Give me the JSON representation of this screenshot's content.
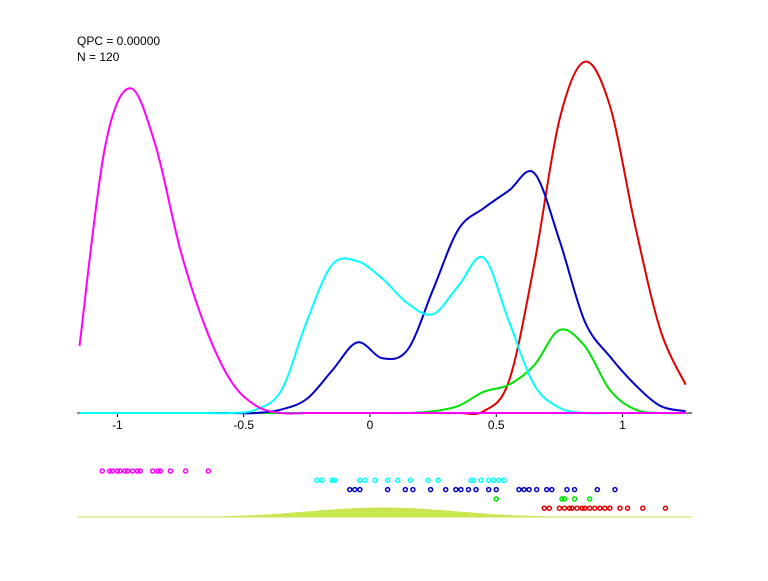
{
  "chart_data": {
    "type": "density",
    "annotations": [
      "QPC = 0.00000",
      "N = 120"
    ],
    "x": [
      -1.15,
      -1.05,
      -0.95,
      -0.85,
      -0.75,
      -0.65,
      -0.55,
      -0.45,
      -0.35,
      -0.25,
      -0.15,
      -0.05,
      0.05,
      0.15,
      0.25,
      0.35,
      0.45,
      0.55,
      0.65,
      0.75,
      0.85,
      0.95,
      1.05,
      1.15,
      1.25
    ],
    "xlim": [
      -1.16,
      1.275
    ],
    "xticks": [
      -1,
      -0.5,
      0,
      0.5,
      1
    ],
    "ylim": [
      0,
      1
    ],
    "series": [
      {
        "color": "#ff00ff",
        "values": [
          0.19,
          0.75,
          0.92,
          0.76,
          0.46,
          0.24,
          0.09,
          0.02,
          0,
          0,
          0,
          0,
          0,
          0,
          0,
          0,
          0,
          0,
          0,
          0,
          0,
          0,
          0,
          0,
          0
        ],
        "points": [
          -1.06,
          -1.03,
          -1.02,
          -1.0,
          -0.99,
          -0.97,
          -0.96,
          -0.94,
          -0.92,
          -0.91,
          -0.86,
          -0.84,
          -0.83,
          -0.79,
          -0.73,
          -0.64
        ]
      },
      {
        "color": "#00ffff",
        "values": [
          0,
          0,
          0,
          0,
          0,
          0,
          0,
          0.01,
          0.065,
          0.26,
          0.42,
          0.43,
          0.38,
          0.31,
          0.28,
          0.36,
          0.44,
          0.26,
          0.08,
          0.015,
          0,
          0,
          0,
          0,
          0
        ],
        "points": [
          -0.21,
          -0.19,
          -0.15,
          -0.14,
          -0.04,
          -0.02,
          0.02,
          0.07,
          0.11,
          0.16,
          0.23,
          0.27,
          0.4,
          0.41,
          0.44,
          0.47,
          0.49,
          0.51,
          0.53
        ]
      },
      {
        "color": "#0000c8",
        "values": [
          0,
          0,
          0,
          0,
          0,
          0,
          0,
          0,
          0.01,
          0.04,
          0.12,
          0.2,
          0.155,
          0.18,
          0.35,
          0.52,
          0.58,
          0.63,
          0.68,
          0.49,
          0.26,
          0.16,
          0.08,
          0.02,
          0.005
        ],
        "points": [
          -0.08,
          -0.06,
          -0.04,
          0.07,
          0.14,
          0.17,
          0.24,
          0.3,
          0.34,
          0.36,
          0.39,
          0.42,
          0.47,
          0.5,
          0.59,
          0.61,
          0.63,
          0.66,
          0.7,
          0.72,
          0.78,
          0.81,
          0.9,
          0.97
        ]
      },
      {
        "color": "#00e000",
        "values": [
          0,
          0,
          0,
          0,
          0,
          0,
          0,
          0,
          0,
          0,
          0,
          0,
          0,
          0,
          0.005,
          0.02,
          0.06,
          0.08,
          0.135,
          0.235,
          0.19,
          0.065,
          0.01,
          0,
          0
        ],
        "points": [
          0.5,
          0.76,
          0.77,
          0.81,
          0.87
        ]
      },
      {
        "color": "#e00000",
        "values": [
          0,
          0,
          0,
          0,
          0,
          0,
          0,
          0,
          0,
          0,
          0,
          0,
          0,
          0,
          0,
          0,
          0.005,
          0.09,
          0.42,
          0.83,
          0.995,
          0.87,
          0.53,
          0.235,
          0.08
        ],
        "points": [
          0.69,
          0.71,
          0.75,
          0.77,
          0.79,
          0.8,
          0.82,
          0.84,
          0.85,
          0.87,
          0.89,
          0.91,
          0.93,
          0.95,
          0.99,
          1.02,
          1.08,
          1.17
        ]
      }
    ],
    "background_density": {
      "color": "#c8e650",
      "ylim": [
        0,
        10
      ],
      "values": [
        0,
        0,
        0,
        0,
        0,
        0,
        0.5,
        1.5,
        3,
        5,
        7,
        8.5,
        9,
        8.5,
        7,
        5,
        3,
        1.5,
        0.5,
        0,
        0,
        0,
        0,
        0,
        0
      ]
    }
  }
}
